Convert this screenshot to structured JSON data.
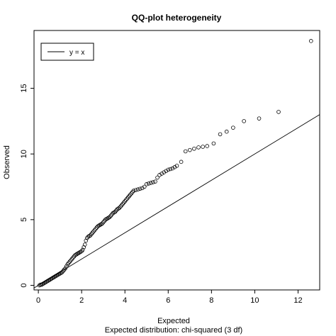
{
  "chart_data": {
    "type": "scatter",
    "title": "QQ-plot heterogeneity",
    "xlabel": "Expected",
    "caption": "Expected distribution: chi-squared (3 df)",
    "ylabel": "Observed",
    "xlim": [
      -0.2,
      13.0
    ],
    "ylim": [
      -0.35,
      19.4
    ],
    "xticks": [
      0,
      2,
      4,
      6,
      8,
      10,
      12
    ],
    "yticks": [
      0,
      5,
      10,
      15
    ],
    "grid": false,
    "legend": {
      "position": "top-left",
      "label": "y = x"
    },
    "reference_line": {
      "slope": 1,
      "intercept": 0
    },
    "points": [
      [
        0.05,
        0.0
      ],
      [
        0.1,
        0.05
      ],
      [
        0.15,
        0.05
      ],
      [
        0.2,
        0.1
      ],
      [
        0.25,
        0.15
      ],
      [
        0.3,
        0.2
      ],
      [
        0.35,
        0.25
      ],
      [
        0.4,
        0.3
      ],
      [
        0.45,
        0.35
      ],
      [
        0.5,
        0.4
      ],
      [
        0.55,
        0.45
      ],
      [
        0.6,
        0.5
      ],
      [
        0.65,
        0.55
      ],
      [
        0.7,
        0.6
      ],
      [
        0.75,
        0.65
      ],
      [
        0.8,
        0.7
      ],
      [
        0.85,
        0.75
      ],
      [
        0.9,
        0.8
      ],
      [
        0.95,
        0.85
      ],
      [
        1.0,
        0.9
      ],
      [
        1.05,
        0.95
      ],
      [
        1.1,
        1.0
      ],
      [
        1.15,
        1.1
      ],
      [
        1.2,
        1.2
      ],
      [
        1.25,
        1.3
      ],
      [
        1.3,
        1.45
      ],
      [
        1.35,
        1.6
      ],
      [
        1.4,
        1.7
      ],
      [
        1.45,
        1.8
      ],
      [
        1.5,
        1.9
      ],
      [
        1.55,
        2.0
      ],
      [
        1.6,
        2.1
      ],
      [
        1.65,
        2.2
      ],
      [
        1.7,
        2.3
      ],
      [
        1.75,
        2.35
      ],
      [
        1.8,
        2.4
      ],
      [
        1.85,
        2.45
      ],
      [
        1.9,
        2.5
      ],
      [
        1.95,
        2.55
      ],
      [
        2.0,
        2.6
      ],
      [
        2.05,
        2.7
      ],
      [
        2.1,
        2.9
      ],
      [
        2.15,
        3.1
      ],
      [
        2.2,
        3.4
      ],
      [
        2.25,
        3.6
      ],
      [
        2.3,
        3.7
      ],
      [
        2.35,
        3.75
      ],
      [
        2.4,
        3.8
      ],
      [
        2.45,
        3.9
      ],
      [
        2.5,
        4.0
      ],
      [
        2.55,
        4.1
      ],
      [
        2.6,
        4.2
      ],
      [
        2.65,
        4.3
      ],
      [
        2.7,
        4.4
      ],
      [
        2.75,
        4.5
      ],
      [
        2.8,
        4.55
      ],
      [
        2.85,
        4.6
      ],
      [
        2.9,
        4.65
      ],
      [
        2.95,
        4.7
      ],
      [
        3.0,
        4.8
      ],
      [
        3.05,
        4.9
      ],
      [
        3.1,
        5.0
      ],
      [
        3.15,
        5.05
      ],
      [
        3.2,
        5.1
      ],
      [
        3.25,
        5.15
      ],
      [
        3.3,
        5.2
      ],
      [
        3.35,
        5.3
      ],
      [
        3.4,
        5.4
      ],
      [
        3.45,
        5.5
      ],
      [
        3.5,
        5.55
      ],
      [
        3.55,
        5.6
      ],
      [
        3.6,
        5.7
      ],
      [
        3.65,
        5.8
      ],
      [
        3.7,
        5.85
      ],
      [
        3.75,
        5.9
      ],
      [
        3.8,
        6.0
      ],
      [
        3.85,
        6.1
      ],
      [
        3.9,
        6.2
      ],
      [
        3.95,
        6.3
      ],
      [
        4.0,
        6.4
      ],
      [
        4.05,
        6.5
      ],
      [
        4.1,
        6.6
      ],
      [
        4.15,
        6.7
      ],
      [
        4.2,
        6.8
      ],
      [
        4.25,
        6.9
      ],
      [
        4.3,
        7.0
      ],
      [
        4.35,
        7.1
      ],
      [
        4.4,
        7.2
      ],
      [
        4.5,
        7.25
      ],
      [
        4.6,
        7.3
      ],
      [
        4.7,
        7.35
      ],
      [
        4.8,
        7.4
      ],
      [
        4.9,
        7.5
      ],
      [
        5.0,
        7.7
      ],
      [
        5.1,
        7.75
      ],
      [
        5.2,
        7.8
      ],
      [
        5.3,
        7.85
      ],
      [
        5.4,
        7.9
      ],
      [
        5.5,
        8.2
      ],
      [
        5.6,
        8.4
      ],
      [
        5.7,
        8.5
      ],
      [
        5.8,
        8.6
      ],
      [
        5.9,
        8.7
      ],
      [
        6.0,
        8.8
      ],
      [
        6.1,
        8.85
      ],
      [
        6.2,
        8.9
      ],
      [
        6.3,
        9.0
      ],
      [
        6.4,
        9.1
      ],
      [
        6.6,
        9.4
      ],
      [
        6.8,
        10.2
      ],
      [
        7.0,
        10.3
      ],
      [
        7.2,
        10.4
      ],
      [
        7.4,
        10.5
      ],
      [
        7.6,
        10.55
      ],
      [
        7.8,
        10.6
      ],
      [
        8.1,
        10.8
      ],
      [
        8.4,
        11.5
      ],
      [
        8.7,
        11.7
      ],
      [
        9.0,
        12.0
      ],
      [
        9.5,
        12.5
      ],
      [
        10.2,
        12.7
      ],
      [
        11.1,
        13.2
      ],
      [
        12.6,
        18.6
      ]
    ]
  }
}
